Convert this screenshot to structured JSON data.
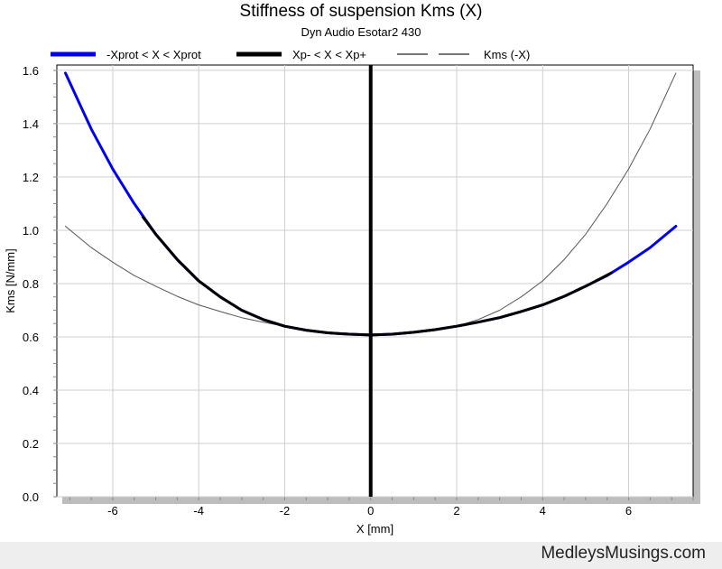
{
  "chart_data": {
    "type": "line",
    "title": "Stiffness of suspension Kms (X)",
    "subtitle": "Dyn Audio Esotar2 430",
    "xlabel": "X [mm]",
    "ylabel": "Kms [N/mm]",
    "xlim": [
      -7.3,
      7.5
    ],
    "ylim": [
      0,
      1.62
    ],
    "xticks": [
      -6,
      -4,
      -2,
      0,
      2,
      4,
      6
    ],
    "yticks": [
      0.0,
      0.2,
      0.4,
      0.6,
      0.8,
      1.0,
      1.2,
      1.4,
      1.6
    ],
    "grid": true,
    "legend_position": "top",
    "series": [
      {
        "name": "-Xprot < X < Xprot",
        "color": "#0000ee",
        "style": "solid-thick",
        "x": [
          -7.1,
          -6.5,
          -6.0,
          -5.5,
          -5.0,
          -4.5,
          -4.0,
          -3.5,
          -3.0,
          -2.5,
          -2.0,
          -1.5,
          -1.0,
          -0.5,
          0.0,
          0.5,
          1.0,
          1.5,
          2.0,
          2.5,
          3.0,
          3.5,
          4.0,
          4.5,
          5.0,
          5.5,
          6.0,
          6.5,
          7.1
        ],
        "y": [
          1.59,
          1.38,
          1.23,
          1.1,
          0.985,
          0.89,
          0.81,
          0.75,
          0.7,
          0.665,
          0.64,
          0.625,
          0.615,
          0.61,
          0.607,
          0.61,
          0.617,
          0.627,
          0.64,
          0.655,
          0.672,
          0.695,
          0.72,
          0.752,
          0.79,
          0.83,
          0.88,
          0.935,
          1.015
        ]
      },
      {
        "name": "Xp- < X < Xp+",
        "color": "#000000",
        "style": "solid-thick",
        "x": [
          -5.3,
          -5.0,
          -4.5,
          -4.0,
          -3.5,
          -3.0,
          -2.5,
          -2.0,
          -1.5,
          -1.0,
          -0.5,
          0.0,
          0.5,
          1.0,
          1.5,
          2.0,
          2.5,
          3.0,
          3.5,
          4.0,
          4.5,
          5.0,
          5.6
        ],
        "y": [
          1.05,
          0.985,
          0.89,
          0.81,
          0.75,
          0.7,
          0.665,
          0.64,
          0.625,
          0.615,
          0.61,
          0.607,
          0.61,
          0.617,
          0.627,
          0.64,
          0.655,
          0.672,
          0.695,
          0.72,
          0.752,
          0.79,
          0.84
        ]
      },
      {
        "name": "Kms (-X)",
        "color": "#555555",
        "style": "thin",
        "x": [
          -7.1,
          -6.5,
          -6.0,
          -5.5,
          -5.0,
          -4.5,
          -4.0,
          -3.5,
          -3.0,
          -2.5,
          -2.0,
          -1.5,
          -1.0,
          -0.5,
          0.0,
          0.5,
          1.0,
          1.5,
          2.0,
          2.5,
          3.0,
          3.5,
          4.0,
          4.5,
          5.0,
          5.5,
          6.0,
          6.5,
          7.1
        ],
        "y": [
          1.015,
          0.935,
          0.88,
          0.83,
          0.79,
          0.752,
          0.72,
          0.695,
          0.672,
          0.655,
          0.64,
          0.627,
          0.617,
          0.61,
          0.607,
          0.61,
          0.615,
          0.625,
          0.64,
          0.665,
          0.7,
          0.75,
          0.81,
          0.89,
          0.985,
          1.1,
          1.23,
          1.38,
          1.59
        ]
      }
    ],
    "vertical_marker": {
      "x": 0,
      "color": "#000000"
    }
  },
  "footer": {
    "text": "MedleysMusings.com"
  }
}
